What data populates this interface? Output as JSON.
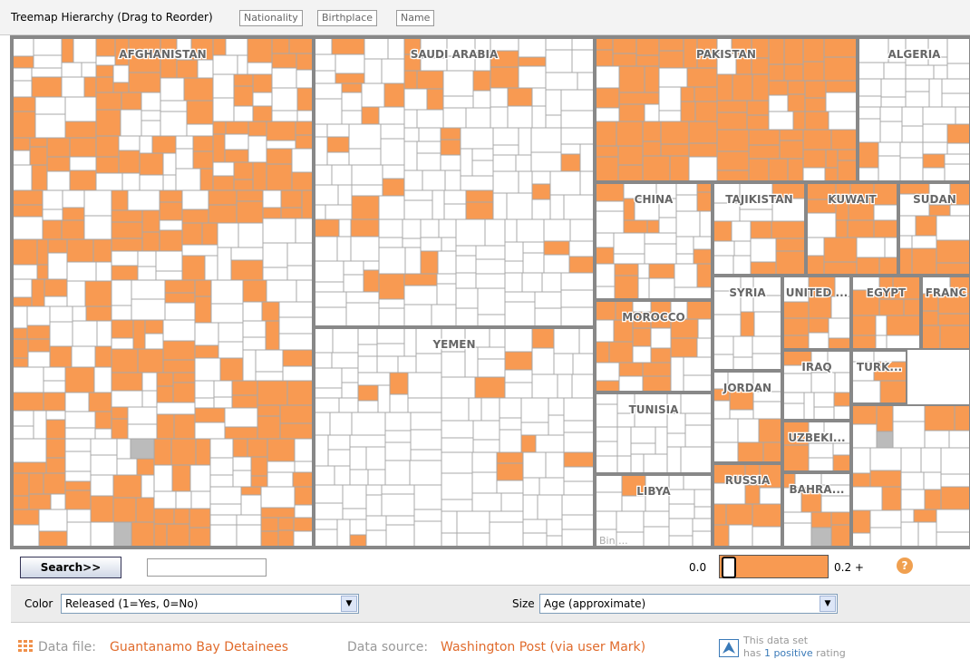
{
  "header": {
    "title": "Treemap Hierarchy (Drag to Reorder)",
    "breadcrumb": [
      "Nationality",
      "Birthplace",
      "Name"
    ]
  },
  "treemap": {
    "regions": [
      {
        "label": "AFGHANISTAN"
      },
      {
        "label": "SAUDI ARABIA"
      },
      {
        "label": "YEMEN"
      },
      {
        "label": "PAKISTAN"
      },
      {
        "label": "ALGERIA"
      },
      {
        "label": "CHINA"
      },
      {
        "label": "MOROCCO"
      },
      {
        "label": "TUNISIA"
      },
      {
        "label": "LIBYA"
      },
      {
        "label": "TAJIKISTAN"
      },
      {
        "label": "KUWAIT"
      },
      {
        "label": "SUDAN"
      },
      {
        "label": "SYRIA"
      },
      {
        "label": "UNITED ..."
      },
      {
        "label": "EGYPT"
      },
      {
        "label": "FRANC"
      },
      {
        "label": "JORDAN"
      },
      {
        "label": "IRAQ"
      },
      {
        "label": "TURK..."
      },
      {
        "label": "UZBEKI..."
      },
      {
        "label": "RUSSIA"
      },
      {
        "label": "BAHRA..."
      }
    ],
    "bin_label": "Bin ..."
  },
  "controls": {
    "search_button": "Search>>",
    "range_min": "0.0",
    "range_max": "0.2 +",
    "help": "?",
    "color_label": "Color",
    "color_value": "Released (1=Yes, 0=No)",
    "size_label": "Size",
    "size_value": "Age (approximate)"
  },
  "footer": {
    "data_file_label": "Data file:",
    "data_file": "Guantanamo Bay Detainees",
    "data_source_label": "Data source:",
    "data_source": "Washington Post (via user Mark)",
    "rating_line1": "This data set",
    "rating_prefix": "has",
    "rating_count": "1 positive",
    "rating_suffix": "rating"
  }
}
